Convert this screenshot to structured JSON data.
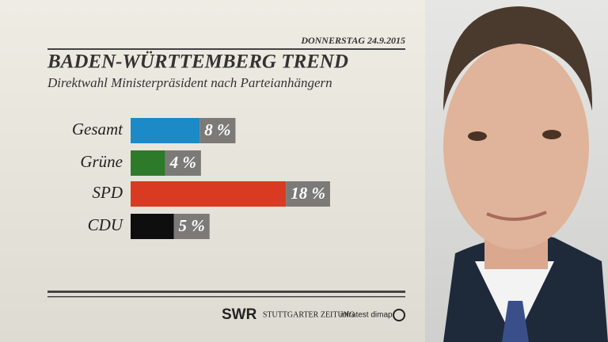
{
  "chart_data": {
    "type": "bar",
    "orientation": "horizontal",
    "date": "DONNERSTAG 24.9.2015",
    "title": "BADEN-WÜRTTEMBERG TREND",
    "subtitle": "Direktwahl Ministerpräsident nach Parteianhängern",
    "categories": [
      "Gesamt",
      "Grüne",
      "SPD",
      "CDU"
    ],
    "values": [
      8,
      4,
      18,
      5
    ],
    "value_labels": [
      "8 %",
      "4 %",
      "18 %",
      "5 %"
    ],
    "colors": [
      "#1b8ac6",
      "#2e7a2b",
      "#d83b22",
      "#0e0e0e"
    ],
    "sources": [
      "SWR",
      "STUTTGARTER ZEITUNG",
      "infratest dimap"
    ]
  }
}
